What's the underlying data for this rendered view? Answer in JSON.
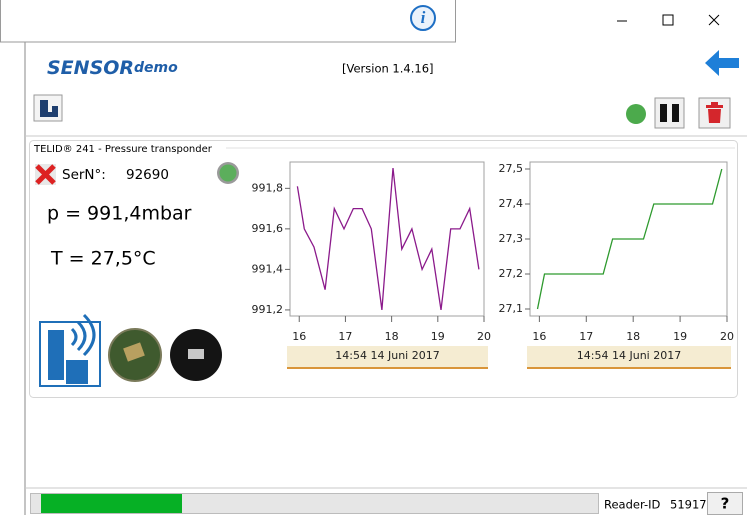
{
  "app": {
    "info_icon": "i",
    "title_bold": "SENSOR",
    "title_italic": "demo",
    "version": "[Version 1.4.16]"
  },
  "sensor": {
    "header": "TELID® 241 - Pressure transponder",
    "serial_label": "SerN°:",
    "serial": "92690",
    "pressure": "p = 991,4mbar",
    "temperature": "T = 27,5°C"
  },
  "status": {
    "reader_label": "Reader-ID",
    "reader_id": "51917",
    "help": "?"
  },
  "chart_data": [
    {
      "type": "line",
      "xlabel": "14:54 14 Juni 2017",
      "x": [
        15.96,
        16.11,
        16.32,
        16.56,
        16.76,
        16.97,
        17.17,
        17.36,
        17.56,
        17.79,
        18.03,
        18.22,
        18.44,
        18.66,
        18.87,
        19.07,
        19.28,
        19.48,
        19.69,
        19.89
      ],
      "series": [
        {
          "color": "#8b1a8b",
          "values": [
            991.81,
            991.6,
            991.51,
            991.3,
            991.7,
            991.6,
            991.7,
            991.7,
            991.6,
            991.2,
            991.9,
            991.5,
            991.6,
            991.4,
            991.5,
            991.2,
            991.6,
            991.6,
            991.7,
            991.4
          ]
        }
      ],
      "xlim": [
        15.8,
        20
      ],
      "ylim": [
        991.17,
        991.93
      ],
      "xticks": [
        16,
        17,
        18,
        19,
        20
      ],
      "yticks": [
        {
          "value": 991.2,
          "label": "991,2"
        },
        {
          "value": 991.4,
          "label": "991,4"
        },
        {
          "value": 991.6,
          "label": "991,6"
        },
        {
          "value": 991.8,
          "label": "991,8"
        }
      ]
    },
    {
      "type": "line",
      "xlabel": "14:54 14 Juni 2017",
      "x": [
        15.96,
        16.11,
        16.32,
        16.56,
        16.76,
        16.97,
        17.17,
        17.36,
        17.56,
        17.79,
        18.03,
        18.22,
        18.44,
        18.66,
        18.87,
        19.07,
        19.28,
        19.48,
        19.69,
        19.89
      ],
      "series": [
        {
          "color": "#2e9a2e",
          "values": [
            27.1,
            27.2,
            27.2,
            27.2,
            27.2,
            27.2,
            27.2,
            27.2,
            27.3,
            27.3,
            27.3,
            27.3,
            27.4,
            27.4,
            27.4,
            27.4,
            27.4,
            27.4,
            27.4,
            27.5
          ]
        }
      ],
      "xlim": [
        15.8,
        20
      ],
      "ylim": [
        27.08,
        27.52
      ],
      "xticks": [
        16,
        17,
        18,
        19,
        20
      ],
      "yticks": [
        {
          "value": 27.1,
          "label": "27,1"
        },
        {
          "value": 27.2,
          "label": "27,2"
        },
        {
          "value": 27.3,
          "label": "27,3"
        },
        {
          "value": 27.4,
          "label": "27,4"
        },
        {
          "value": 27.5,
          "label": "27,5"
        }
      ]
    }
  ]
}
